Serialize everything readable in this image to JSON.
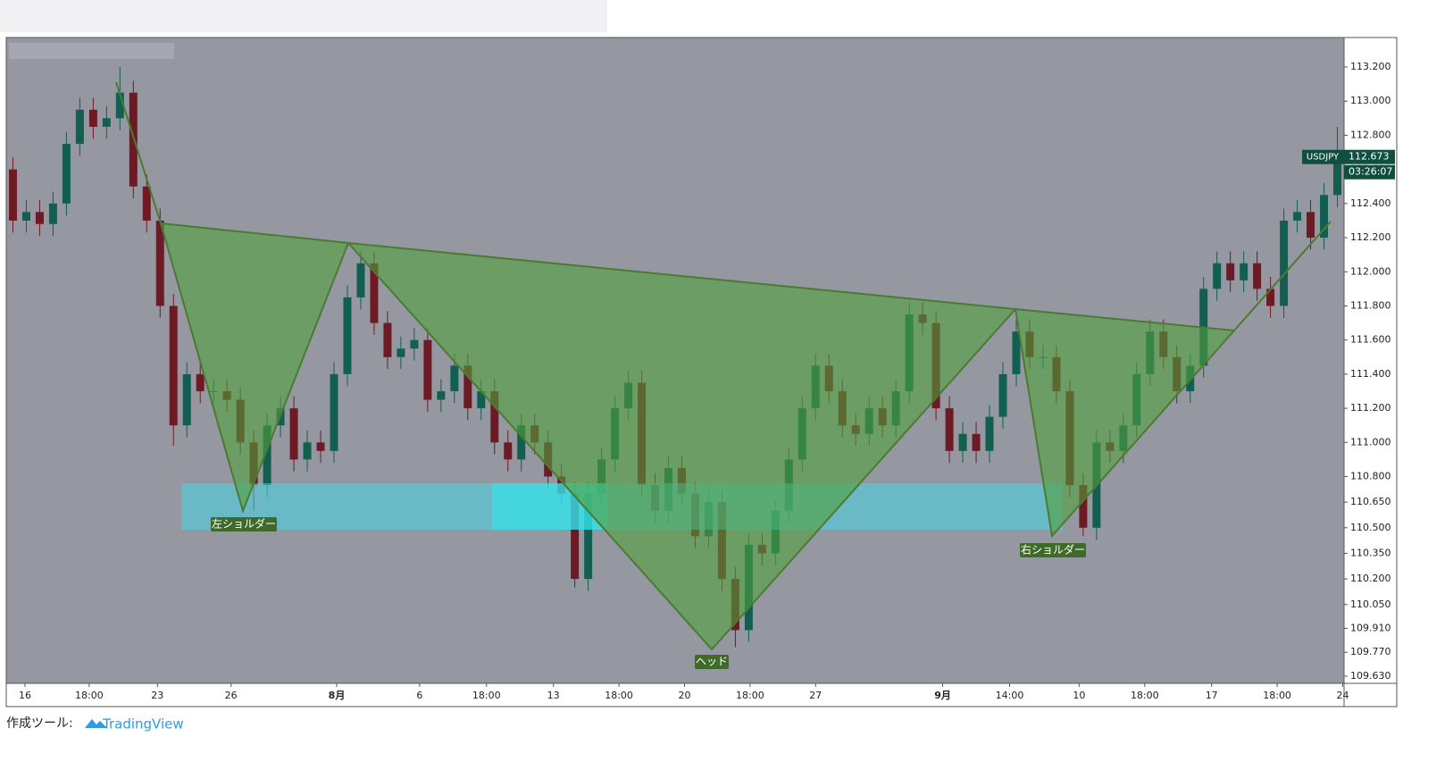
{
  "chart_data": {
    "type": "candlestick",
    "symbol": "USDJPY",
    "last_price": 112.673,
    "last_price_label": "112.673",
    "countdown": "03:26:07",
    "annotations": [
      "左ショルダー",
      "ヘッド",
      "右ショルダー"
    ],
    "up_color": "#125e50",
    "down_color": "#6e1a25",
    "xlim": [
      -0.5,
      99.5
    ],
    "xticks": [
      {
        "value": 0.9,
        "label": "16"
      },
      {
        "value": 5.7,
        "label": "18:00"
      },
      {
        "value": 10.8,
        "label": "23"
      },
      {
        "value": 16.3,
        "label": "26"
      },
      {
        "value": 24.2,
        "label": "8月"
      },
      {
        "value": 30.4,
        "label": "6"
      },
      {
        "value": 35.4,
        "label": "18:00"
      },
      {
        "value": 40.4,
        "label": "13"
      },
      {
        "value": 45.3,
        "label": "18:00"
      },
      {
        "value": 50.2,
        "label": "20"
      },
      {
        "value": 55.1,
        "label": "18:00"
      },
      {
        "value": 60.0,
        "label": "27"
      },
      {
        "value": 69.5,
        "label": "9月"
      },
      {
        "value": 74.5,
        "label": "14:00"
      },
      {
        "value": 79.7,
        "label": "10"
      },
      {
        "value": 84.6,
        "label": "18:00"
      },
      {
        "value": 89.6,
        "label": "17"
      },
      {
        "value": 94.5,
        "label": "18:00"
      },
      {
        "value": 99.4,
        "label": "24"
      }
    ],
    "ylim": [
      109.588,
      113.373
    ],
    "yticks": [
      {
        "value": 113.2,
        "label": "113.200"
      },
      {
        "value": 113.0,
        "label": "113.000"
      },
      {
        "value": 112.8,
        "label": "112.800"
      },
      {
        "value": 112.6,
        "label": "112.600"
      },
      {
        "value": 112.4,
        "label": "112.400"
      },
      {
        "value": 112.2,
        "label": "112.200"
      },
      {
        "value": 112.0,
        "label": "112.000"
      },
      {
        "value": 111.8,
        "label": "111.800"
      },
      {
        "value": 111.6,
        "label": "111.600"
      },
      {
        "value": 111.4,
        "label": "111.400"
      },
      {
        "value": 111.2,
        "label": "111.200"
      },
      {
        "value": 111.0,
        "label": "111.000"
      },
      {
        "value": 110.8,
        "label": "110.800"
      },
      {
        "value": 110.65,
        "label": "110.650"
      },
      {
        "value": 110.5,
        "label": "110.500"
      },
      {
        "value": 110.35,
        "label": "110.350"
      },
      {
        "value": 110.2,
        "label": "110.200"
      },
      {
        "value": 110.05,
        "label": "110.050"
      },
      {
        "value": 109.91,
        "label": "109.910"
      },
      {
        "value": 109.77,
        "label": "109.770"
      },
      {
        "value": 109.63,
        "label": "109.630"
      }
    ],
    "grid": false,
    "open": [
      112.6,
      112.3,
      112.35,
      112.28,
      112.4,
      112.75,
      112.95,
      112.85,
      112.9,
      113.05,
      112.5,
      112.3,
      111.8,
      111.1,
      111.4,
      111.3,
      111.3,
      111.25,
      111.0,
      110.75,
      111.1,
      111.2,
      110.9,
      111.0,
      110.95,
      111.4,
      111.85,
      112.05,
      111.7,
      111.5,
      111.55,
      111.6,
      111.25,
      111.3,
      111.45,
      111.2,
      111.3,
      111.0,
      110.9,
      111.1,
      111.0,
      110.8,
      110.7,
      110.2,
      110.7,
      110.9,
      111.2,
      111.35,
      110.75,
      110.6,
      110.85,
      110.7,
      110.45,
      110.65,
      110.2,
      109.9,
      110.4,
      110.35,
      110.6,
      110.9,
      111.2,
      111.45,
      111.3,
      111.1,
      111.05,
      111.2,
      111.1,
      111.3,
      111.75,
      111.7,
      111.2,
      110.95,
      111.05,
      110.95,
      111.15,
      111.4,
      111.65,
      111.5,
      111.5,
      111.3,
      110.75,
      110.5,
      111.0,
      110.95,
      111.1,
      111.4,
      111.65,
      111.5,
      111.3,
      111.45,
      111.9,
      112.05,
      111.95,
      112.05,
      111.9,
      111.8,
      112.3,
      112.35,
      112.2,
      112.45
    ],
    "high": [
      112.67,
      112.42,
      112.42,
      112.47,
      112.82,
      113.02,
      113.02,
      112.97,
      113.2,
      113.12,
      112.57,
      112.37,
      111.87,
      111.47,
      111.47,
      111.37,
      111.37,
      111.32,
      111.07,
      111.17,
      111.27,
      111.27,
      111.07,
      111.07,
      111.47,
      111.92,
      112.12,
      112.12,
      111.77,
      111.62,
      111.67,
      111.67,
      111.37,
      111.52,
      111.52,
      111.37,
      111.37,
      111.07,
      111.17,
      111.17,
      111.07,
      110.87,
      110.77,
      110.77,
      110.97,
      111.27,
      111.42,
      111.42,
      110.82,
      110.92,
      110.92,
      110.77,
      110.72,
      110.72,
      110.27,
      110.47,
      110.47,
      110.67,
      110.97,
      111.27,
      111.52,
      111.52,
      111.37,
      111.17,
      111.27,
      111.27,
      111.37,
      111.82,
      111.82,
      111.77,
      111.27,
      111.12,
      111.12,
      111.22,
      111.47,
      111.72,
      111.72,
      111.57,
      111.57,
      111.37,
      110.82,
      111.07,
      111.07,
      111.17,
      111.47,
      111.72,
      111.72,
      111.57,
      111.52,
      111.97,
      112.12,
      112.12,
      112.12,
      112.12,
      111.97,
      112.37,
      112.42,
      112.42,
      112.52,
      112.85
    ],
    "low": [
      112.23,
      112.23,
      112.21,
      112.21,
      112.33,
      112.68,
      112.78,
      112.78,
      112.83,
      112.43,
      112.23,
      111.73,
      110.98,
      111.03,
      111.23,
      111.23,
      111.18,
      110.93,
      110.6,
      110.68,
      111.03,
      110.83,
      110.83,
      110.88,
      110.88,
      111.33,
      111.78,
      111.63,
      111.43,
      111.43,
      111.48,
      111.18,
      111.18,
      111.23,
      111.13,
      111.13,
      110.93,
      110.83,
      110.83,
      110.93,
      110.73,
      110.63,
      110.15,
      110.13,
      110.63,
      110.83,
      111.13,
      110.68,
      110.53,
      110.53,
      110.63,
      110.38,
      110.38,
      110.13,
      109.8,
      109.83,
      110.28,
      110.28,
      110.53,
      110.83,
      111.13,
      111.23,
      111.03,
      110.98,
      110.98,
      111.03,
      111.03,
      111.23,
      111.63,
      111.13,
      110.88,
      110.88,
      110.88,
      110.88,
      111.08,
      111.33,
      111.43,
      111.43,
      111.23,
      110.68,
      110.45,
      110.43,
      110.88,
      110.88,
      111.03,
      111.33,
      111.43,
      111.23,
      111.23,
      111.38,
      111.83,
      111.88,
      111.88,
      111.83,
      111.73,
      111.73,
      112.23,
      112.13,
      112.13,
      112.38
    ],
    "close": [
      112.3,
      112.35,
      112.28,
      112.4,
      112.75,
      112.95,
      112.85,
      112.9,
      113.05,
      112.5,
      112.3,
      111.8,
      111.1,
      111.4,
      111.3,
      111.3,
      111.25,
      111.0,
      110.75,
      111.1,
      111.2,
      110.9,
      111.0,
      110.95,
      111.4,
      111.85,
      112.05,
      111.7,
      111.5,
      111.55,
      111.6,
      111.25,
      111.3,
      111.45,
      111.2,
      111.3,
      111.0,
      110.9,
      111.1,
      111.0,
      110.8,
      110.7,
      110.2,
      110.7,
      110.9,
      111.2,
      111.35,
      110.75,
      110.6,
      110.85,
      110.7,
      110.45,
      110.65,
      110.2,
      109.9,
      110.4,
      110.35,
      110.6,
      110.9,
      111.2,
      111.45,
      111.3,
      111.1,
      111.05,
      111.2,
      111.1,
      111.3,
      111.75,
      111.7,
      111.2,
      110.95,
      111.05,
      110.95,
      111.15,
      111.4,
      111.65,
      111.5,
      111.5,
      111.3,
      110.75,
      110.5,
      111.0,
      110.95,
      111.1,
      111.4,
      111.65,
      111.5,
      111.3,
      111.45,
      111.9,
      112.05,
      111.95,
      112.05,
      111.9,
      111.8,
      112.3,
      112.35,
      112.2,
      112.45,
      112.673
    ]
  },
  "footer": {
    "label": "作成ツール:",
    "brand": "TradingView"
  }
}
